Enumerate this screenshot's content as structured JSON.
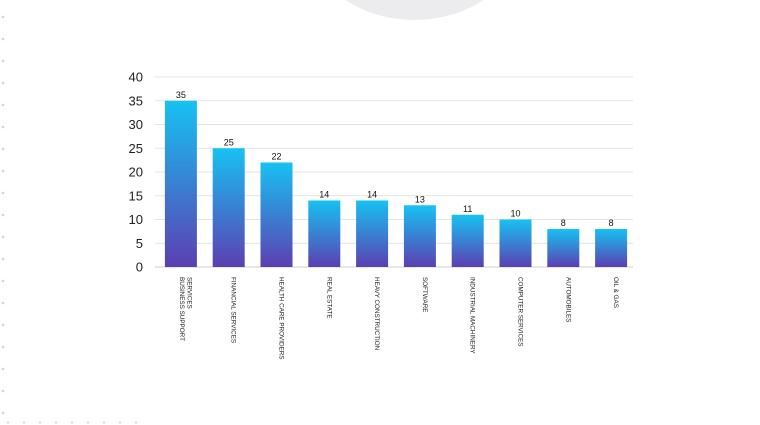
{
  "chart_data": {
    "type": "bar",
    "categories": [
      [
        "BUSINESS SUPPORT",
        "SERVICES"
      ],
      [
        "FINANCIAL SERVICES"
      ],
      [
        "HEALTH CARE PROVIDERS"
      ],
      [
        "REAL ESTATE"
      ],
      [
        "HEAVY CONSTRUCTION"
      ],
      [
        "SOFTWARE"
      ],
      [
        "INDUSTRIAL MACHINERY"
      ],
      [
        "COMPUTER SERVICES"
      ],
      [
        "AUTOMOBILES"
      ],
      [
        "OIL & GAS"
      ]
    ],
    "values": [
      35,
      25,
      22,
      14,
      14,
      13,
      11,
      10,
      8,
      8
    ],
    "value_labels": [
      "35",
      "25",
      "22",
      "14",
      "14",
      "13",
      "11",
      "10",
      "8",
      "8"
    ],
    "ylim": [
      0,
      40
    ],
    "yticks": [
      0,
      5,
      10,
      15,
      20,
      25,
      30,
      35,
      40
    ],
    "grid": true,
    "legend": "none",
    "bar_gradient": [
      "#17c2f2",
      "#5b3fb2"
    ],
    "grid_color": "#e3e3e3"
  }
}
